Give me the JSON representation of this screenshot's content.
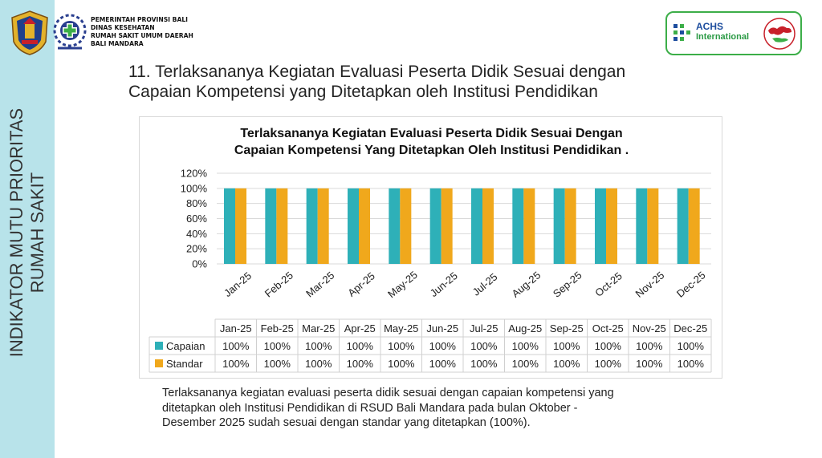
{
  "sidebar": {
    "line1": "INDIKATOR MUTU PRIORITAS",
    "line2": "RUMAH SAKIT"
  },
  "header": {
    "org_lines": [
      "PEMERINTAH PROVINSI BALI",
      "DINAS KESEHATAN",
      "RUMAH SAKIT UMUM DAERAH",
      "BALI MANDARA"
    ],
    "badge": {
      "name": "ACHS",
      "subname": "International"
    }
  },
  "slide": {
    "title_line1": "11. Terlaksananya Kegiatan Evaluasi Peserta Didik Sesuai dengan",
    "title_line2": "Capaian Kompetensi yang Ditetapkan oleh Institusi Pendidikan"
  },
  "chart_data": {
    "type": "bar",
    "title_line1": "Terlaksananya Kegiatan Evaluasi Peserta Didik Sesuai Dengan",
    "title_line2": "Capaian Kompetensi Yang Ditetapkan Oleh Institusi Pendidikan .",
    "categories": [
      "Jan-25",
      "Feb-25",
      "Mar-25",
      "Apr-25",
      "May-25",
      "Jun-25",
      "Jul-25",
      "Aug-25",
      "Sep-25",
      "Oct-25",
      "Nov-25",
      "Dec-25"
    ],
    "series": [
      {
        "name": "Capaian",
        "color": "#2eb0b8",
        "values": [
          100,
          100,
          100,
          100,
          100,
          100,
          100,
          100,
          100,
          100,
          100,
          100
        ],
        "labels": [
          "100%",
          "100%",
          "100%",
          "100%",
          "100%",
          "100%",
          "100%",
          "100%",
          "100%",
          "100%",
          "100%",
          "100%"
        ]
      },
      {
        "name": "Standar",
        "color": "#f0a81c",
        "values": [
          100,
          100,
          100,
          100,
          100,
          100,
          100,
          100,
          100,
          100,
          100,
          100
        ],
        "labels": [
          "100%",
          "100%",
          "100%",
          "100%",
          "100%",
          "100%",
          "100%",
          "100%",
          "100%",
          "100%",
          "100%",
          "100%"
        ]
      }
    ],
    "ylim": [
      0,
      120
    ],
    "yticks": [
      0,
      20,
      40,
      60,
      80,
      100,
      120
    ],
    "ytick_labels": [
      "0%",
      "20%",
      "40%",
      "60%",
      "80%",
      "100%",
      "120%"
    ],
    "xlabel": "",
    "ylabel": "",
    "data_table": true
  },
  "summary": {
    "line1": "Terlaksananya kegiatan evaluasi peserta didik sesuai dengan capaian kompetensi yang",
    "line2": "ditetapkan oleh Institusi Pendidikan di RSUD Bali Mandara pada bulan Oktober -",
    "line3": "Desember 2025 sudah sesuai dengan standar yang ditetapkan (100%)."
  }
}
